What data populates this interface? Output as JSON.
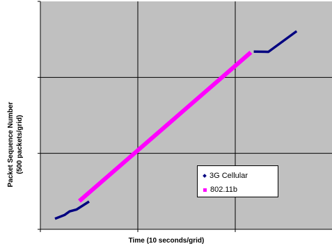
{
  "chart_data": {
    "type": "scatter",
    "title": "",
    "xlabel": "Time (10 seconds/grid)",
    "ylabel_line1": "Packet Sequence Number",
    "ylabel_line2": "(500 packets/grid)",
    "x_grid": 10,
    "y_grid": 500,
    "xlim": [
      0,
      30
    ],
    "ylim": [
      0,
      1500
    ],
    "grid": true,
    "plot_background": "#c0c0c0",
    "legend_position": "bottom-right",
    "series": [
      {
        "name": "3G Cellular",
        "color": "#000080",
        "marker": "diamond",
        "segments": [
          [
            [
              1.5,
              70
            ],
            [
              2.5,
              95
            ],
            [
              3.0,
              118
            ],
            [
              3.7,
              130
            ],
            [
              5.0,
              183
            ]
          ],
          [
            [
              21.9,
              1170
            ],
            [
              23.4,
              1168
            ],
            [
              26.3,
              1304
            ]
          ]
        ]
      },
      {
        "name": "802.11b",
        "color": "#ff00ff",
        "marker": "square",
        "segments": [
          [
            [
              4.0,
              186
            ],
            [
              21.6,
              1165
            ]
          ]
        ]
      }
    ]
  }
}
